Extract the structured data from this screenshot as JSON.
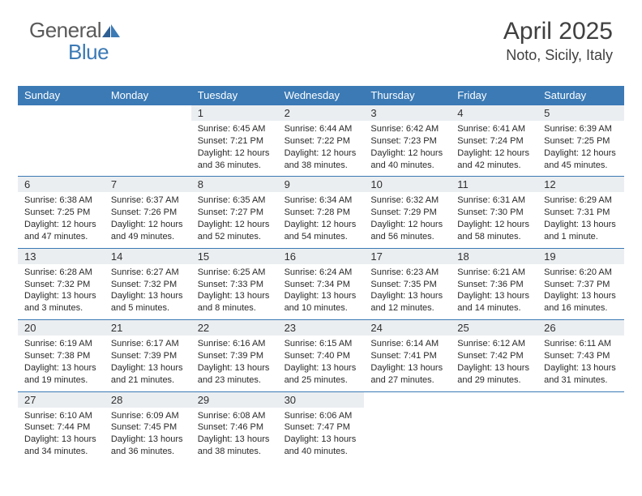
{
  "logo": {
    "part1": "General",
    "part2": "Blue"
  },
  "title": "April 2025",
  "location": "Noto, Sicily, Italy",
  "colors": {
    "header_bg": "#3b7ab5",
    "daynum_bg": "#ebeef1",
    "text": "#303030",
    "logo_gray": "#5a5a5a",
    "logo_blue": "#3b7ab5"
  },
  "day_names": [
    "Sunday",
    "Monday",
    "Tuesday",
    "Wednesday",
    "Thursday",
    "Friday",
    "Saturday"
  ],
  "weeks": [
    [
      {
        "day": "",
        "sunrise": "",
        "sunset": "",
        "daylight1": "",
        "daylight2": ""
      },
      {
        "day": "",
        "sunrise": "",
        "sunset": "",
        "daylight1": "",
        "daylight2": ""
      },
      {
        "day": "1",
        "sunrise": "Sunrise: 6:45 AM",
        "sunset": "Sunset: 7:21 PM",
        "daylight1": "Daylight: 12 hours",
        "daylight2": "and 36 minutes."
      },
      {
        "day": "2",
        "sunrise": "Sunrise: 6:44 AM",
        "sunset": "Sunset: 7:22 PM",
        "daylight1": "Daylight: 12 hours",
        "daylight2": "and 38 minutes."
      },
      {
        "day": "3",
        "sunrise": "Sunrise: 6:42 AM",
        "sunset": "Sunset: 7:23 PM",
        "daylight1": "Daylight: 12 hours",
        "daylight2": "and 40 minutes."
      },
      {
        "day": "4",
        "sunrise": "Sunrise: 6:41 AM",
        "sunset": "Sunset: 7:24 PM",
        "daylight1": "Daylight: 12 hours",
        "daylight2": "and 42 minutes."
      },
      {
        "day": "5",
        "sunrise": "Sunrise: 6:39 AM",
        "sunset": "Sunset: 7:25 PM",
        "daylight1": "Daylight: 12 hours",
        "daylight2": "and 45 minutes."
      }
    ],
    [
      {
        "day": "6",
        "sunrise": "Sunrise: 6:38 AM",
        "sunset": "Sunset: 7:25 PM",
        "daylight1": "Daylight: 12 hours",
        "daylight2": "and 47 minutes."
      },
      {
        "day": "7",
        "sunrise": "Sunrise: 6:37 AM",
        "sunset": "Sunset: 7:26 PM",
        "daylight1": "Daylight: 12 hours",
        "daylight2": "and 49 minutes."
      },
      {
        "day": "8",
        "sunrise": "Sunrise: 6:35 AM",
        "sunset": "Sunset: 7:27 PM",
        "daylight1": "Daylight: 12 hours",
        "daylight2": "and 52 minutes."
      },
      {
        "day": "9",
        "sunrise": "Sunrise: 6:34 AM",
        "sunset": "Sunset: 7:28 PM",
        "daylight1": "Daylight: 12 hours",
        "daylight2": "and 54 minutes."
      },
      {
        "day": "10",
        "sunrise": "Sunrise: 6:32 AM",
        "sunset": "Sunset: 7:29 PM",
        "daylight1": "Daylight: 12 hours",
        "daylight2": "and 56 minutes."
      },
      {
        "day": "11",
        "sunrise": "Sunrise: 6:31 AM",
        "sunset": "Sunset: 7:30 PM",
        "daylight1": "Daylight: 12 hours",
        "daylight2": "and 58 minutes."
      },
      {
        "day": "12",
        "sunrise": "Sunrise: 6:29 AM",
        "sunset": "Sunset: 7:31 PM",
        "daylight1": "Daylight: 13 hours",
        "daylight2": "and 1 minute."
      }
    ],
    [
      {
        "day": "13",
        "sunrise": "Sunrise: 6:28 AM",
        "sunset": "Sunset: 7:32 PM",
        "daylight1": "Daylight: 13 hours",
        "daylight2": "and 3 minutes."
      },
      {
        "day": "14",
        "sunrise": "Sunrise: 6:27 AM",
        "sunset": "Sunset: 7:32 PM",
        "daylight1": "Daylight: 13 hours",
        "daylight2": "and 5 minutes."
      },
      {
        "day": "15",
        "sunrise": "Sunrise: 6:25 AM",
        "sunset": "Sunset: 7:33 PM",
        "daylight1": "Daylight: 13 hours",
        "daylight2": "and 8 minutes."
      },
      {
        "day": "16",
        "sunrise": "Sunrise: 6:24 AM",
        "sunset": "Sunset: 7:34 PM",
        "daylight1": "Daylight: 13 hours",
        "daylight2": "and 10 minutes."
      },
      {
        "day": "17",
        "sunrise": "Sunrise: 6:23 AM",
        "sunset": "Sunset: 7:35 PM",
        "daylight1": "Daylight: 13 hours",
        "daylight2": "and 12 minutes."
      },
      {
        "day": "18",
        "sunrise": "Sunrise: 6:21 AM",
        "sunset": "Sunset: 7:36 PM",
        "daylight1": "Daylight: 13 hours",
        "daylight2": "and 14 minutes."
      },
      {
        "day": "19",
        "sunrise": "Sunrise: 6:20 AM",
        "sunset": "Sunset: 7:37 PM",
        "daylight1": "Daylight: 13 hours",
        "daylight2": "and 16 minutes."
      }
    ],
    [
      {
        "day": "20",
        "sunrise": "Sunrise: 6:19 AM",
        "sunset": "Sunset: 7:38 PM",
        "daylight1": "Daylight: 13 hours",
        "daylight2": "and 19 minutes."
      },
      {
        "day": "21",
        "sunrise": "Sunrise: 6:17 AM",
        "sunset": "Sunset: 7:39 PM",
        "daylight1": "Daylight: 13 hours",
        "daylight2": "and 21 minutes."
      },
      {
        "day": "22",
        "sunrise": "Sunrise: 6:16 AM",
        "sunset": "Sunset: 7:39 PM",
        "daylight1": "Daylight: 13 hours",
        "daylight2": "and 23 minutes."
      },
      {
        "day": "23",
        "sunrise": "Sunrise: 6:15 AM",
        "sunset": "Sunset: 7:40 PM",
        "daylight1": "Daylight: 13 hours",
        "daylight2": "and 25 minutes."
      },
      {
        "day": "24",
        "sunrise": "Sunrise: 6:14 AM",
        "sunset": "Sunset: 7:41 PM",
        "daylight1": "Daylight: 13 hours",
        "daylight2": "and 27 minutes."
      },
      {
        "day": "25",
        "sunrise": "Sunrise: 6:12 AM",
        "sunset": "Sunset: 7:42 PM",
        "daylight1": "Daylight: 13 hours",
        "daylight2": "and 29 minutes."
      },
      {
        "day": "26",
        "sunrise": "Sunrise: 6:11 AM",
        "sunset": "Sunset: 7:43 PM",
        "daylight1": "Daylight: 13 hours",
        "daylight2": "and 31 minutes."
      }
    ],
    [
      {
        "day": "27",
        "sunrise": "Sunrise: 6:10 AM",
        "sunset": "Sunset: 7:44 PM",
        "daylight1": "Daylight: 13 hours",
        "daylight2": "and 34 minutes."
      },
      {
        "day": "28",
        "sunrise": "Sunrise: 6:09 AM",
        "sunset": "Sunset: 7:45 PM",
        "daylight1": "Daylight: 13 hours",
        "daylight2": "and 36 minutes."
      },
      {
        "day": "29",
        "sunrise": "Sunrise: 6:08 AM",
        "sunset": "Sunset: 7:46 PM",
        "daylight1": "Daylight: 13 hours",
        "daylight2": "and 38 minutes."
      },
      {
        "day": "30",
        "sunrise": "Sunrise: 6:06 AM",
        "sunset": "Sunset: 7:47 PM",
        "daylight1": "Daylight: 13 hours",
        "daylight2": "and 40 minutes."
      },
      {
        "day": "",
        "sunrise": "",
        "sunset": "",
        "daylight1": "",
        "daylight2": ""
      },
      {
        "day": "",
        "sunrise": "",
        "sunset": "",
        "daylight1": "",
        "daylight2": ""
      },
      {
        "day": "",
        "sunrise": "",
        "sunset": "",
        "daylight1": "",
        "daylight2": ""
      }
    ]
  ]
}
